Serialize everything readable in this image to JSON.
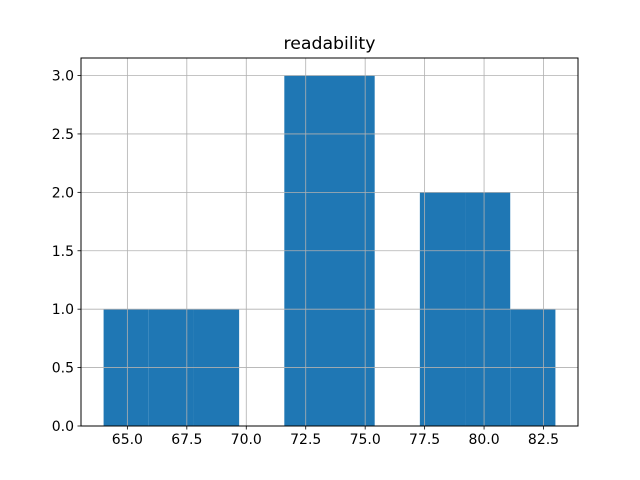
{
  "figure": {
    "background_color": "#ffffff"
  },
  "chart_data": {
    "type": "bar",
    "subtype": "histogram",
    "title": "readability",
    "xlabel": "",
    "ylabel": "",
    "bin_edges": [
      64.0,
      65.9,
      67.8,
      69.7,
      71.6,
      73.5,
      75.4,
      77.3,
      79.2,
      81.1,
      83.0
    ],
    "counts": [
      1,
      1,
      1,
      0,
      3,
      3,
      0,
      2,
      2,
      1
    ],
    "xticks": [
      65.0,
      67.5,
      70.0,
      72.5,
      75.0,
      77.5,
      80.0,
      82.5
    ],
    "yticks": [
      0.0,
      0.5,
      1.0,
      1.5,
      2.0,
      2.5,
      3.0
    ],
    "xtick_labels": [
      "65.0",
      "67.5",
      "70.0",
      "72.5",
      "75.0",
      "77.5",
      "80.0",
      "82.5"
    ],
    "ytick_labels": [
      "0.0",
      "0.5",
      "1.0",
      "1.5",
      "2.0",
      "2.5",
      "3.0"
    ],
    "xlim": [
      63.05,
      83.95
    ],
    "ylim": [
      0,
      3.15
    ],
    "grid": true,
    "grid_over_bars": true,
    "legend": "none",
    "bar_color": "#1f77b4",
    "grid_color": "#b0b0b0",
    "spine_color": "#000000",
    "text_color": "#000000"
  }
}
